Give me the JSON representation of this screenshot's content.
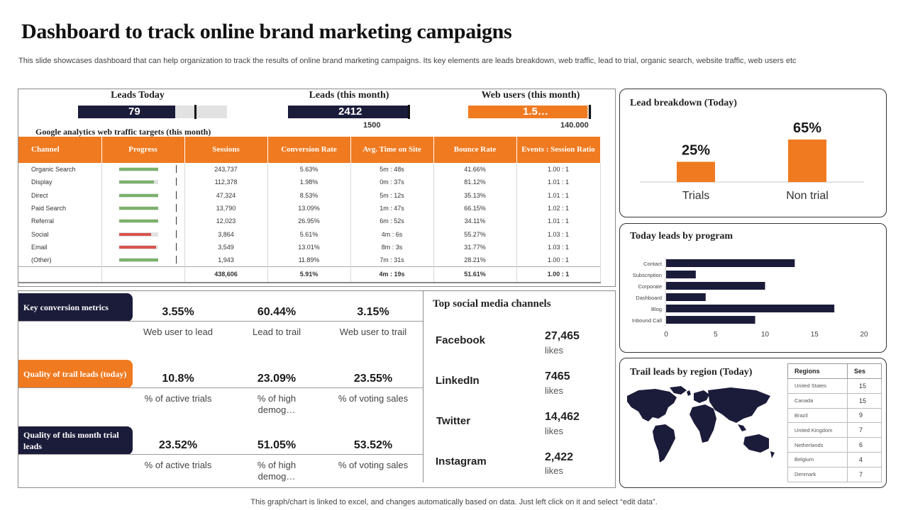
{
  "title": "Dashboard to track online brand marketing campaigns",
  "subtitle": "This slide showcases dashboard that can help organization to track the results of online brand marketing campaigns. Its key elements are leads breakdown, web traffic, lead to trial, organic search, website traffic, web users etc",
  "footer": "This graph/chart is linked to excel,  and changes automatically based on data. Just left click on it and select “edit data”.",
  "colors": {
    "navy": "#1b1b3a",
    "orange": "#f07a20",
    "green": "#7ab26a",
    "red": "#d9534f",
    "grey": "#e2e2e2"
  },
  "kpis": {
    "leads_today": {
      "label": "Leads Today",
      "value": "79",
      "fill": 0.82
    },
    "leads_month": {
      "label": "Leads (this month)",
      "value": "2412",
      "target": "1500",
      "fill": 1.0
    },
    "web_users": {
      "label": "Web users (this month)",
      "value": "1.5…",
      "target": "140.000",
      "fill": 0.98
    }
  },
  "ga": {
    "title": "Google analytics web traffic targets (this month)",
    "headers": [
      "Channel",
      "Progress",
      "Sessions",
      "Conversion Rate",
      "Avg. Time on Site",
      "Bounce Rate",
      "Events : Session Ratio"
    ],
    "rows": [
      {
        "channel": "Organic Search",
        "progress": 1.0,
        "bar": "green",
        "sessions": "243,737",
        "conv": "5.63%",
        "time": "5m : 48s",
        "bounce": "41.66%",
        "ratio": "1.00 : 1"
      },
      {
        "channel": "Display",
        "progress": 0.9,
        "bar": "green",
        "sessions": "112,378",
        "conv": "1.98%",
        "time": "0m : 37s",
        "bounce": "81.12%",
        "ratio": "1.01 : 1"
      },
      {
        "channel": "Direct",
        "progress": 1.0,
        "bar": "green",
        "sessions": "47,324",
        "conv": "8.53%",
        "time": "5m : 12s",
        "bounce": "35.13%",
        "ratio": "1.01 : 1"
      },
      {
        "channel": "Paid Search",
        "progress": 1.0,
        "bar": "green",
        "sessions": "13,790",
        "conv": "13.09%",
        "time": "1m : 47s",
        "bounce": "66.15%",
        "ratio": "1.02 : 1"
      },
      {
        "channel": "Referral",
        "progress": 1.0,
        "bar": "green",
        "sessions": "12,023",
        "conv": "26.95%",
        "time": "6m : 52s",
        "bounce": "34.11%",
        "ratio": "1.01 : 1"
      },
      {
        "channel": "Social",
        "progress": 0.82,
        "bar": "red",
        "sessions": "3,864",
        "conv": "5.61%",
        "time": "4m : 6s",
        "bounce": "55.27%",
        "ratio": "1.03 : 1"
      },
      {
        "channel": "Email",
        "progress": 0.95,
        "bar": "red",
        "sessions": "3,549",
        "conv": "13.01%",
        "time": "8m : 3s",
        "bounce": "31.77%",
        "ratio": "1.03 : 1"
      },
      {
        "channel": "(Other)",
        "progress": 1.0,
        "bar": "green",
        "sessions": "1,943",
        "conv": "11.89%",
        "time": "7m : 31s",
        "bounce": "28.21%",
        "ratio": "1.00 : 1"
      }
    ],
    "total": {
      "sessions": "438,606",
      "conv": "5.91%",
      "time": "4m : 19s",
      "bounce": "51.61%",
      "ratio": "1.00 : 1"
    }
  },
  "metrics": {
    "key": {
      "tag": "Key conversion metrics",
      "values": [
        "3.55%",
        "60.44%",
        "3.15%"
      ],
      "labels": [
        "Web user to lead",
        "Lead to trail",
        "Web user to trail"
      ]
    },
    "trail_today": {
      "tag": "Quality of trail leads (today)",
      "values": [
        "10.8%",
        "23.09%",
        "23.55%"
      ],
      "labels": [
        "% of active trials",
        "% of high demog…",
        "% of voting sales"
      ]
    },
    "trail_month": {
      "tag": "Quality of this month trial leads",
      "values": [
        "23.52%",
        "51.05%",
        "53.52%"
      ],
      "labels": [
        "% of active trials",
        "% of high demog…",
        "% of voting sales"
      ]
    }
  },
  "social": {
    "title": "Top social media channels",
    "unit": "likes",
    "items": [
      {
        "name": "Facebook",
        "value": "27,465"
      },
      {
        "name": "LinkedIn",
        "value": "7465"
      },
      {
        "name": "Twitter",
        "value": "14,462"
      },
      {
        "name": "Instagram",
        "value": "2,422"
      }
    ]
  },
  "lead_breakdown": {
    "title": "Lead breakdown (Today)"
  },
  "program": {
    "title": "Today leads by program"
  },
  "region": {
    "title": "Trail leads by region (Today)",
    "headers": [
      "Regions",
      "Ses"
    ],
    "rows": [
      {
        "name": "United States",
        "value": "15"
      },
      {
        "name": "Canada",
        "value": "15"
      },
      {
        "name": "Brazil",
        "value": "9"
      },
      {
        "name": "United Kingdom",
        "value": "7"
      },
      {
        "name": "Netherlands",
        "value": "6"
      },
      {
        "name": "Belgium",
        "value": "4"
      },
      {
        "name": "Denmark",
        "value": "7"
      }
    ]
  },
  "chart_data": [
    {
      "type": "bar",
      "title": "Lead breakdown (Today)",
      "categories": [
        "Trials",
        "Non trial"
      ],
      "values": [
        25,
        65
      ],
      "data_labels": [
        "25%",
        "65%"
      ],
      "ylim": [
        0,
        70
      ]
    },
    {
      "type": "bar",
      "orientation": "horizontal",
      "title": "Today leads by program",
      "categories": [
        "Contact",
        "Subscription",
        "Corporate",
        "Dashboard",
        "Blog",
        "Inbound Call"
      ],
      "values": [
        13,
        3,
        10,
        4,
        17,
        9
      ],
      "xlim": [
        0,
        20
      ],
      "xticks": [
        "0",
        "5",
        "10",
        "15",
        "20"
      ]
    }
  ]
}
